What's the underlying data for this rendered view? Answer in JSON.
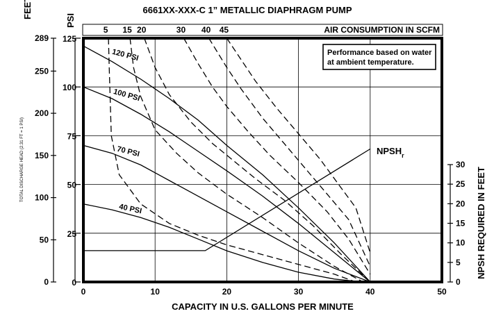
{
  "chart_data": {
    "type": "line",
    "title": "6661XX-XXX-C   1” METALLIC DIAPHRAGM PUMP",
    "xlabel": "CAPACITY IN U.S. GALLONS PER MINUTE",
    "x_ticks": [
      0,
      10,
      20,
      30,
      40,
      50
    ],
    "xlim": [
      0,
      50
    ],
    "left_axis_psi": {
      "label": "PSI",
      "ticks": [
        0,
        25,
        50,
        75,
        100,
        125
      ],
      "ylim": [
        0,
        125
      ]
    },
    "left_axis_feet": {
      "label": "FEET",
      "ticks": [
        0,
        50,
        100,
        150,
        200,
        250,
        289
      ],
      "sublabel": "TOTAL DISCHARGE HEAD (2.31 FT = 1 PSI)"
    },
    "right_axis": {
      "label": "NPSH REQUIRED IN FEET",
      "ticks": [
        0,
        5,
        10,
        15,
        20,
        25,
        30
      ],
      "ylim": [
        0,
        30
      ]
    },
    "top_axis": {
      "label": "AIR CONSUMPTION IN SCFM",
      "ticks": [
        "5",
        "15",
        "20",
        "30",
        "40",
        "45"
      ]
    },
    "note": [
      "Performance based on water",
      "at ambient temperature."
    ],
    "pressure_series": [
      {
        "name": "120 PSI",
        "x": [
          0,
          4,
          8,
          12,
          16,
          20,
          25,
          30,
          35,
          40
        ],
        "y": [
          121,
          113,
          104,
          94,
          83,
          70,
          55,
          38,
          20,
          0
        ]
      },
      {
        "name": "100 PSI",
        "x": [
          0,
          4,
          8,
          12,
          16,
          20,
          25,
          30,
          35,
          40
        ],
        "y": [
          100,
          94,
          86,
          77,
          67,
          57,
          44,
          30,
          15,
          0
        ]
      },
      {
        "name": "70 PSI",
        "x": [
          0,
          4,
          8,
          12,
          16,
          20,
          25,
          30,
          35,
          40
        ],
        "y": [
          70,
          66,
          60,
          52,
          44,
          36,
          26,
          16,
          7,
          0
        ]
      },
      {
        "name": "40 PSI",
        "x": [
          0,
          4,
          8,
          12,
          16,
          20,
          25,
          30,
          35,
          39
        ],
        "y": [
          40,
          37,
          33,
          28,
          22,
          16,
          10,
          5,
          1.5,
          0
        ]
      }
    ],
    "air_series": [
      {
        "name": "5",
        "x": [
          3.5,
          3.6,
          3.9,
          5.0,
          8,
          12,
          16,
          20,
          25,
          30,
          35,
          38
        ],
        "y": [
          125,
          110,
          75,
          55,
          40,
          30,
          24,
          19,
          14,
          9,
          4,
          0
        ]
      },
      {
        "name": "15",
        "x": [
          6.5,
          7,
          8,
          10,
          13,
          16,
          20,
          25,
          30,
          35,
          39
        ],
        "y": [
          125,
          110,
          95,
          78,
          66,
          56,
          45,
          33,
          20,
          8,
          0
        ]
      },
      {
        "name": "20",
        "x": [
          8.5,
          10,
          12,
          15,
          18,
          21,
          24,
          28,
          32,
          36,
          40
        ],
        "y": [
          125,
          110,
          96,
          82,
          71,
          62,
          53,
          42,
          29,
          14,
          0
        ]
      },
      {
        "name": "30",
        "x": [
          14,
          16,
          18,
          20,
          23,
          26,
          30,
          34,
          37,
          40
        ],
        "y": [
          125,
          112,
          100,
          90,
          77,
          65,
          51,
          36,
          22,
          4
        ]
      },
      {
        "name": "40",
        "x": [
          17.5,
          20,
          22,
          25,
          28,
          31,
          34,
          37,
          40
        ],
        "y": [
          125,
          110,
          99,
          84,
          71,
          58,
          45,
          32,
          8
        ]
      },
      {
        "name": "45",
        "x": [
          20,
          22,
          24,
          27,
          30,
          33,
          36,
          38,
          40
        ],
        "y": [
          125,
          114,
          103,
          89,
          76,
          63,
          48,
          38,
          15
        ]
      }
    ],
    "npsh": {
      "name": "NPSHr",
      "label_main": "NPSH",
      "label_sub": "r",
      "x": [
        0,
        17,
        40
      ],
      "y": [
        8,
        8,
        34
      ]
    },
    "grid": true
  }
}
